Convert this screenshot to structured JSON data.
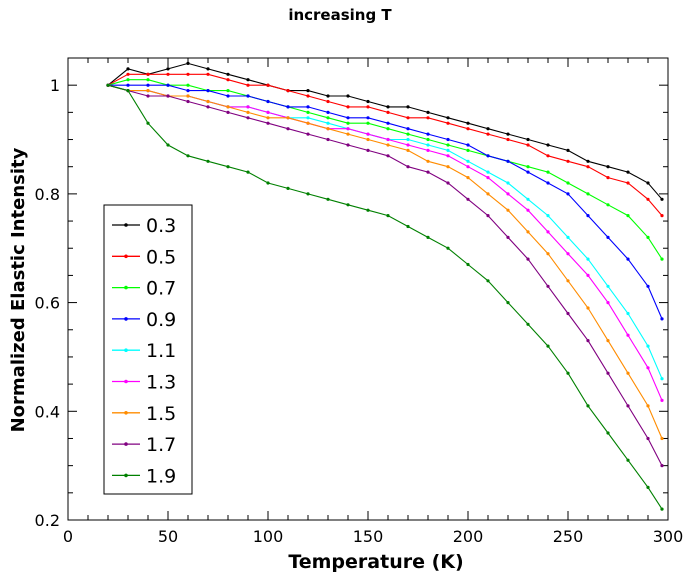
{
  "chart_data": {
    "type": "line",
    "title": "increasing T",
    "xlabel": "Temperature (K)",
    "ylabel": "Normalized Elastic Intensity",
    "xlim": [
      0,
      300
    ],
    "ylim": [
      0.2,
      1.05
    ],
    "x_ticks": [
      "0",
      "50",
      "100",
      "150",
      "200",
      "250",
      "300"
    ],
    "y_ticks": [
      "0.2",
      "0.4",
      "0.6",
      "0.8",
      "1"
    ],
    "grid": false,
    "legend_position": "bottom-left",
    "x": [
      20,
      30,
      40,
      50,
      60,
      70,
      80,
      90,
      100,
      110,
      120,
      130,
      140,
      150,
      160,
      170,
      180,
      190,
      200,
      210,
      220,
      230,
      240,
      250,
      260,
      270,
      280,
      290,
      297
    ],
    "series": [
      {
        "name": "0.3",
        "color": "#000000",
        "values": [
          1.0,
          1.03,
          1.02,
          1.03,
          1.04,
          1.03,
          1.02,
          1.01,
          1.0,
          0.99,
          0.99,
          0.98,
          0.98,
          0.97,
          0.96,
          0.96,
          0.95,
          0.94,
          0.93,
          0.92,
          0.91,
          0.9,
          0.89,
          0.88,
          0.86,
          0.85,
          0.84,
          0.82,
          0.79
        ]
      },
      {
        "name": "0.5",
        "color": "#ff0000",
        "values": [
          1.0,
          1.02,
          1.02,
          1.02,
          1.02,
          1.02,
          1.01,
          1.0,
          1.0,
          0.99,
          0.98,
          0.97,
          0.96,
          0.96,
          0.95,
          0.94,
          0.94,
          0.93,
          0.92,
          0.91,
          0.9,
          0.89,
          0.87,
          0.86,
          0.85,
          0.83,
          0.82,
          0.79,
          0.76
        ]
      },
      {
        "name": "0.7",
        "color": "#00ff00",
        "values": [
          1.0,
          1.01,
          1.01,
          1.0,
          1.0,
          0.99,
          0.99,
          0.98,
          0.97,
          0.96,
          0.95,
          0.94,
          0.93,
          0.93,
          0.92,
          0.91,
          0.9,
          0.89,
          0.88,
          0.87,
          0.86,
          0.85,
          0.84,
          0.82,
          0.8,
          0.78,
          0.76,
          0.72,
          0.68
        ]
      },
      {
        "name": "0.9",
        "color": "#0000ff",
        "values": [
          1.0,
          1.0,
          1.0,
          1.0,
          0.99,
          0.99,
          0.98,
          0.98,
          0.97,
          0.96,
          0.96,
          0.95,
          0.94,
          0.94,
          0.93,
          0.92,
          0.91,
          0.9,
          0.89,
          0.87,
          0.86,
          0.84,
          0.82,
          0.8,
          0.76,
          0.72,
          0.68,
          0.63,
          0.57
        ]
      },
      {
        "name": "1.1",
        "color": "#00ffff",
        "values": [
          1.0,
          0.99,
          0.99,
          0.98,
          0.98,
          0.97,
          0.96,
          0.96,
          0.95,
          0.94,
          0.94,
          0.93,
          0.92,
          0.91,
          0.9,
          0.9,
          0.89,
          0.88,
          0.86,
          0.84,
          0.82,
          0.79,
          0.76,
          0.72,
          0.68,
          0.63,
          0.58,
          0.52,
          0.46
        ]
      },
      {
        "name": "1.3",
        "color": "#ff00ff",
        "values": [
          1.0,
          0.99,
          0.99,
          0.98,
          0.98,
          0.97,
          0.96,
          0.96,
          0.95,
          0.94,
          0.93,
          0.92,
          0.92,
          0.91,
          0.9,
          0.89,
          0.88,
          0.87,
          0.85,
          0.83,
          0.8,
          0.77,
          0.73,
          0.69,
          0.65,
          0.6,
          0.54,
          0.48,
          0.42
        ]
      },
      {
        "name": "1.5",
        "color": "#ff8c00",
        "values": [
          1.0,
          0.99,
          0.99,
          0.98,
          0.98,
          0.97,
          0.96,
          0.95,
          0.94,
          0.94,
          0.93,
          0.92,
          0.91,
          0.9,
          0.89,
          0.88,
          0.86,
          0.85,
          0.83,
          0.8,
          0.77,
          0.73,
          0.69,
          0.64,
          0.59,
          0.53,
          0.47,
          0.41,
          0.35
        ]
      },
      {
        "name": "1.7",
        "color": "#800080",
        "values": [
          1.0,
          0.99,
          0.98,
          0.98,
          0.97,
          0.96,
          0.95,
          0.94,
          0.93,
          0.92,
          0.91,
          0.9,
          0.89,
          0.88,
          0.87,
          0.85,
          0.84,
          0.82,
          0.79,
          0.76,
          0.72,
          0.68,
          0.63,
          0.58,
          0.53,
          0.47,
          0.41,
          0.35,
          0.3
        ]
      },
      {
        "name": "1.9",
        "color": "#008000",
        "values": [
          1.0,
          0.99,
          0.93,
          0.89,
          0.87,
          0.86,
          0.85,
          0.84,
          0.82,
          0.81,
          0.8,
          0.79,
          0.78,
          0.77,
          0.76,
          0.74,
          0.72,
          0.7,
          0.67,
          0.64,
          0.6,
          0.56,
          0.52,
          0.47,
          0.41,
          0.36,
          0.31,
          0.26,
          0.22
        ]
      }
    ]
  }
}
